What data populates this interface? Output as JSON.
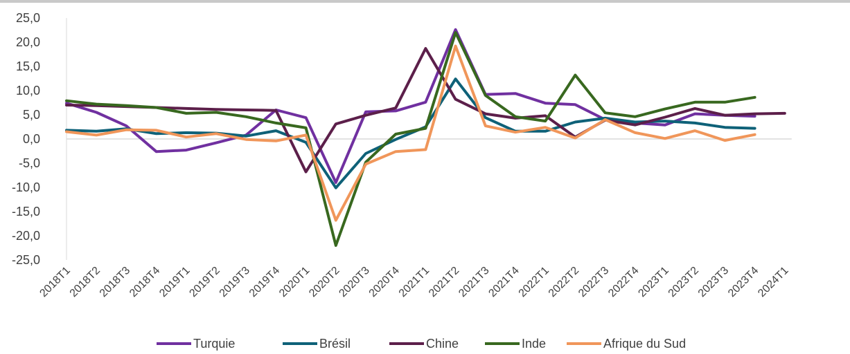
{
  "chart_data": {
    "type": "line",
    "title": "",
    "xlabel": "",
    "ylabel": "",
    "ylim": [
      -25,
      25
    ],
    "ytick_step": 5,
    "grid": false,
    "legend_position": "bottom",
    "categories": [
      "2018T1",
      "2018T2",
      "2018T3",
      "2018T4",
      "2019T1",
      "2019T2",
      "2019T3",
      "2019T4",
      "2020T1",
      "2020T2",
      "2020T3",
      "2020T4",
      "2021T1",
      "2021T2",
      "2021T3",
      "2021T4",
      "2022T1",
      "2022T2",
      "2022T3",
      "2022T4",
      "2023T1",
      "2023T2",
      "2023T3",
      "2023T4",
      "2024T1"
    ],
    "ytick_labels": [
      "25,0",
      "20,0",
      "15,0",
      "10,0",
      "5,0",
      "0,0",
      "-5,0",
      "-10,0",
      "-15,0",
      "-20,0",
      "-25,0"
    ],
    "series": [
      {
        "name": "Turquie",
        "color": "#7030a0",
        "values": [
          7.4,
          5.5,
          2.7,
          -2.6,
          -2.3,
          -0.8,
          0.8,
          6.0,
          4.4,
          -9.0,
          5.6,
          5.8,
          7.6,
          22.6,
          9.2,
          9.4,
          7.4,
          7.1,
          4.0,
          3.3,
          2.9,
          5.2,
          4.9,
          4.7,
          null
        ]
      },
      {
        "name": "Brésil",
        "color": "#0e6178",
        "values": [
          1.8,
          1.6,
          2.1,
          1.1,
          1.3,
          1.2,
          0.6,
          1.7,
          -0.7,
          -10.1,
          -3.0,
          -0.1,
          2.5,
          12.4,
          4.4,
          1.6,
          1.6,
          3.5,
          4.3,
          3.5,
          3.7,
          3.3,
          2.4,
          2.2,
          null
        ]
      },
      {
        "name": "Chine",
        "color": "#5c1f4a",
        "values": [
          7.0,
          6.9,
          6.7,
          6.5,
          6.3,
          6.1,
          6.0,
          5.9,
          -6.8,
          3.1,
          4.9,
          6.4,
          18.7,
          8.2,
          5.2,
          4.3,
          4.8,
          0.4,
          3.9,
          2.9,
          4.5,
          6.3,
          4.9,
          5.2,
          5.3
        ]
      },
      {
        "name": "Inde",
        "color": "#38681f",
        "values": [
          7.9,
          7.2,
          6.9,
          6.5,
          5.3,
          5.5,
          4.6,
          3.3,
          2.3,
          -22.0,
          -4.8,
          1.0,
          2.2,
          22.0,
          9.0,
          4.6,
          3.7,
          13.2,
          5.4,
          4.6,
          6.2,
          7.6,
          7.6,
          8.6,
          null
        ]
      },
      {
        "name": "Afrique du Sud",
        "color": "#f0965a",
        "values": [
          1.5,
          0.8,
          1.9,
          1.8,
          0.4,
          1.1,
          -0.1,
          -0.4,
          0.8,
          -16.8,
          -5.2,
          -2.6,
          -2.2,
          19.2,
          2.7,
          1.4,
          2.4,
          0.2,
          4.0,
          1.3,
          0.1,
          1.7,
          -0.3,
          0.9,
          null
        ]
      }
    ]
  }
}
